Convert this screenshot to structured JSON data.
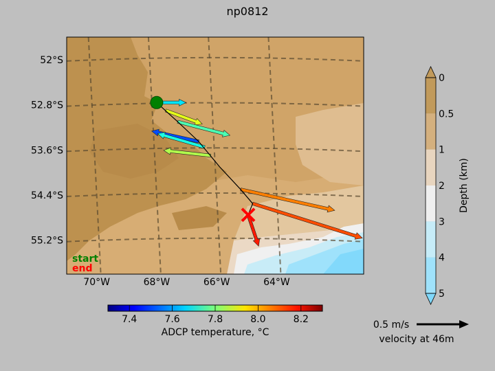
{
  "chart_data": [
    {
      "type": "map",
      "title": "np0812",
      "lon_ticks": [
        "70°W",
        "68°W",
        "66°W",
        "64°W"
      ],
      "lat_ticks": [
        "52°S",
        "52.8°S",
        "53.6°S",
        "54.4°S",
        "55.2°S"
      ],
      "lon_range": [
        -71.0,
        -61.1
      ],
      "lat_range": [
        -55.8,
        -51.6
      ],
      "legend": [
        {
          "label": "start",
          "color": "#008000"
        },
        {
          "label": "end",
          "color": "#ff0000"
        }
      ],
      "start_marker": {
        "lon": -68.0,
        "lat": -52.76
      },
      "end_marker": {
        "lon": -64.95,
        "lat": -54.75
      },
      "track": [
        {
          "lon": -68.0,
          "lat": -52.76
        },
        {
          "lon": -67.3,
          "lat": -53.1
        },
        {
          "lon": -66.6,
          "lat": -53.45
        },
        {
          "lon": -65.9,
          "lat": -53.9
        },
        {
          "lon": -65.2,
          "lat": -54.3
        },
        {
          "lon": -64.8,
          "lat": -54.55
        },
        {
          "lon": -64.95,
          "lat": -54.75
        }
      ],
      "velocity_vectors": [
        {
          "lon": -68.0,
          "lat": -52.76,
          "u": 0.28,
          "v": 0.0,
          "temp": 7.65
        },
        {
          "lon": -67.7,
          "lat": -52.9,
          "u": 0.35,
          "v": -0.13,
          "temp": 7.9
        },
        {
          "lon": -67.3,
          "lat": -53.1,
          "u": 0.5,
          "v": -0.13,
          "temp": 7.75
        },
        {
          "lon": -66.6,
          "lat": -53.45,
          "u": -0.45,
          "v": 0.1,
          "temp": 7.5
        },
        {
          "lon": -66.4,
          "lat": -53.55,
          "u": -0.45,
          "v": 0.13,
          "temp": 7.7
        },
        {
          "lon": -66.2,
          "lat": -53.7,
          "u": -0.45,
          "v": 0.05,
          "temp": 7.85
        },
        {
          "lon": -65.2,
          "lat": -54.3,
          "u": 0.9,
          "v": -0.2,
          "temp": 8.05
        },
        {
          "lon": -64.8,
          "lat": -54.55,
          "u": 1.05,
          "v": -0.33,
          "temp": 8.1
        },
        {
          "lon": -64.95,
          "lat": -54.75,
          "u": 0.1,
          "v": -0.3,
          "temp": 8.15
        }
      ],
      "colorbar": {
        "label": "ADCP temperature, °C",
        "ticks": [
          "7.4",
          "7.6",
          "7.8",
          "8.0",
          "8.2"
        ],
        "range": [
          7.3,
          8.3
        ]
      },
      "quiver_key": {
        "label": "0.5 m/s",
        "caption": "velocity at 46m",
        "speed": 0.5
      }
    },
    {
      "type": "colorbar",
      "ylabel": "Depth (km)",
      "ticks": [
        "0",
        "0.5",
        "1",
        "2",
        "3",
        "4",
        "5"
      ],
      "colors": [
        "#c19a5b",
        "#d4b07e",
        "#e8d5bf",
        "#efefef",
        "#c6ecf8",
        "#9fe2fb",
        "#7fd8fb"
      ]
    }
  ]
}
